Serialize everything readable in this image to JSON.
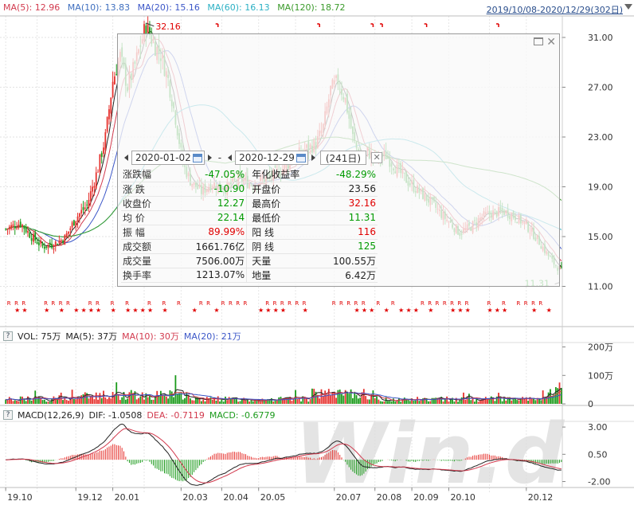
{
  "header": {
    "ma_labels": [
      {
        "text": "MA(5): 12.96",
        "color": "#d23a4e"
      },
      {
        "text": "MA(10): 13.83",
        "color": "#3f6fbf"
      },
      {
        "text": "MA(20): 15.16",
        "color": "#3c57c8"
      },
      {
        "text": "MA(60): 16.13",
        "color": "#2bb0c4"
      },
      {
        "text": "MA(120): 18.72",
        "color": "#3a9a2a"
      }
    ],
    "range": "2019/10/08-2020/12/29(302日)"
  },
  "price_axis": {
    "ticks": [
      "31.00",
      "27.00",
      "23.00",
      "19.00",
      "15.00",
      "11.00"
    ]
  },
  "annotations": {
    "high": "32.16",
    "low": "11.31"
  },
  "tooltip": {
    "start_date": "2020-01-02",
    "separator": "-",
    "end_date": "2020-12-29",
    "days": "(241日)",
    "rows": [
      {
        "k1": "涨跌幅",
        "v1": "-47.05%",
        "c1": "green",
        "k2": "年化收益率",
        "v2": "-48.29%",
        "c2": "green"
      },
      {
        "k1": "涨  跌",
        "v1": "-10.90",
        "c1": "green",
        "k2": "开盘价",
        "v2": "23.56",
        "c2": "dark"
      },
      {
        "k1": "收盘价",
        "v1": "12.27",
        "c1": "green",
        "k2": "最高价",
        "v2": "32.16",
        "c2": "red"
      },
      {
        "k1": "均  价",
        "v1": "22.14",
        "c1": "green",
        "k2": "最低价",
        "v2": "11.31",
        "c2": "green"
      },
      {
        "k1": "振  幅",
        "v1": "89.99%",
        "c1": "red",
        "k2": "阳  线",
        "v2": "116",
        "c2": "red"
      },
      {
        "k1": "成交额",
        "v1": "1661.76亿",
        "c1": "dark",
        "k2": "阴  线",
        "v2": "125",
        "c2": "green"
      },
      {
        "k1": "成交量",
        "v1": "7506.00万",
        "c1": "dark",
        "k2": "天量",
        "v2": "100.55万",
        "c2": "dark"
      },
      {
        "k1": "换手率",
        "v1": "1213.07%",
        "c1": "dark",
        "k2": "地量",
        "v2": "6.42万",
        "c2": "dark"
      }
    ]
  },
  "vol_panel": {
    "q": "?",
    "labels": [
      {
        "text": "VOL: 75万",
        "color": "#222222"
      },
      {
        "text": "MA(5): 37万",
        "color": "#222222"
      },
      {
        "text": "MA(10): 30万",
        "color": "#d23a4e"
      },
      {
        "text": "MA(20): 21万",
        "color": "#3c57c8"
      }
    ],
    "ticks": [
      "200万",
      "100万",
      "0"
    ]
  },
  "macd_panel": {
    "q": "?",
    "labels": [
      {
        "text": "MACD(12,26,9)",
        "color": "#222222"
      },
      {
        "text": "DIF: -1.0508",
        "color": "#222222"
      },
      {
        "text": "DEA: -0.7119",
        "color": "#d23a4e"
      },
      {
        "text": "MACD: -0.6779",
        "color": "#1a9a1a"
      }
    ],
    "ticks": [
      "3.00",
      "0.50",
      "-2.00"
    ]
  },
  "x_axis": {
    "labels": [
      "19.10",
      "19.12",
      "20.01",
      "20.03",
      "20.04",
      "20.05",
      "20.07",
      "20.08",
      "20.09",
      "20.10",
      "20.12"
    ]
  },
  "watermark": "Win.d",
  "colors": {
    "up": "#e6322e",
    "down": "#1a9a1a",
    "ma5": "#222222",
    "ma10": "#d23a4e",
    "ma20": "#3c57c8",
    "ma60": "#2bb0c4",
    "ma120": "#3a9a2a"
  },
  "chart_data": {
    "type": "candlestick",
    "y_range": [
      10.2,
      32.6
    ],
    "key_points": [
      {
        "x": "2019-10",
        "close": 15.6
      },
      {
        "x": "2019-11",
        "close": 14.2
      },
      {
        "x": "2019-12",
        "close": 16.5
      },
      {
        "x": "2020-01",
        "close": 29.5
      },
      {
        "x": "2020-02",
        "close": 30.5
      },
      {
        "x": "2020-03",
        "close": 20.5
      },
      {
        "x": "2020-04",
        "close": 19.2
      },
      {
        "x": "2020-05",
        "close": 19.5
      },
      {
        "x": "2020-06",
        "close": 22.3
      },
      {
        "x": "2020-07",
        "close": 27.0
      },
      {
        "x": "2020-08",
        "close": 21.2
      },
      {
        "x": "2020-09",
        "close": 18.5
      },
      {
        "x": "2020-10",
        "close": 16.8
      },
      {
        "x": "2020-11",
        "close": 16.6
      },
      {
        "x": "2020-12",
        "close": 12.27
      }
    ]
  }
}
